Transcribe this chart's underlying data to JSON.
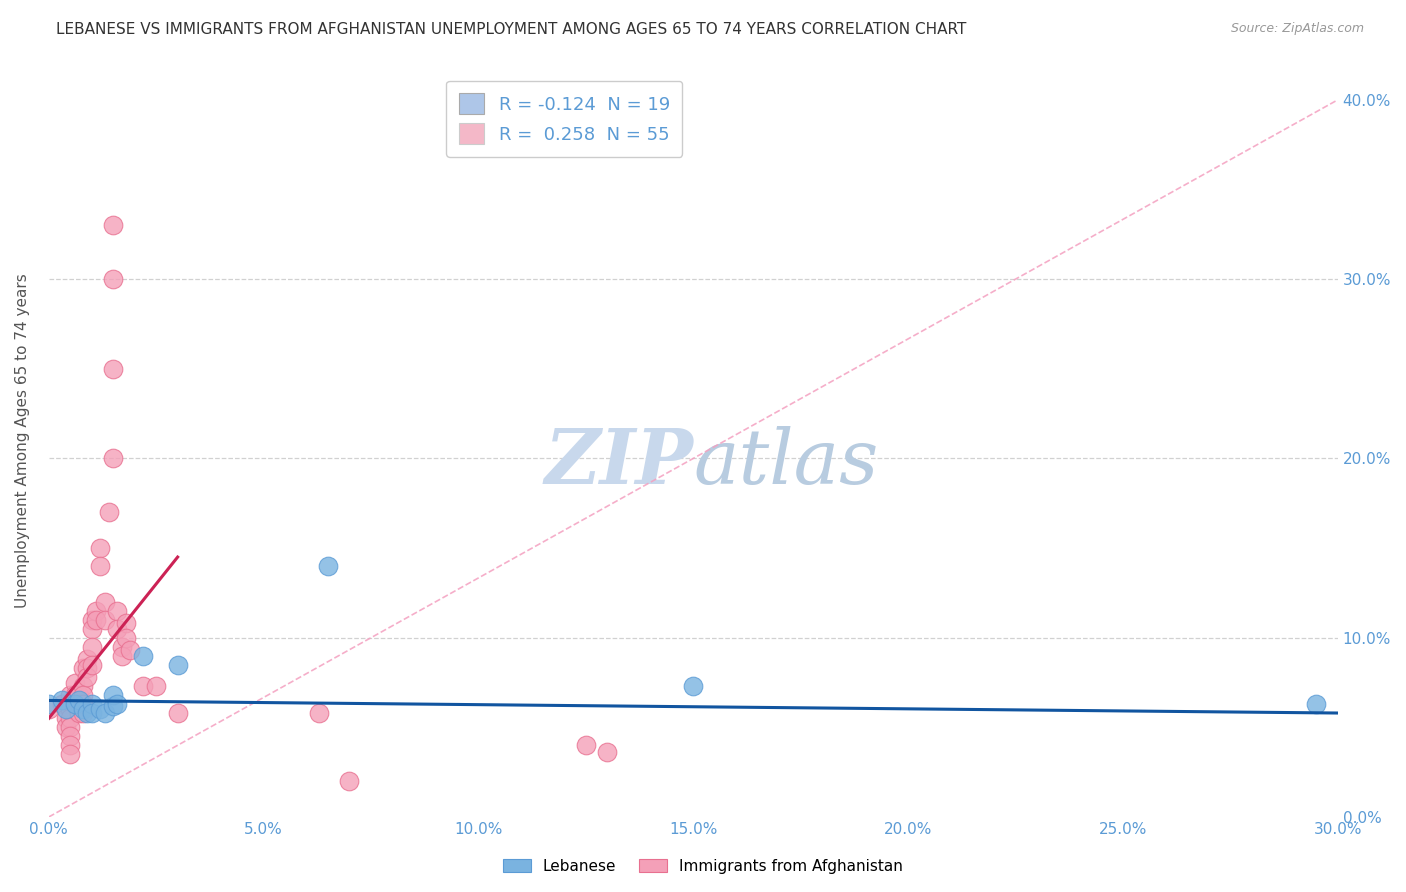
{
  "title": "LEBANESE VS IMMIGRANTS FROM AFGHANISTAN UNEMPLOYMENT AMONG AGES 65 TO 74 YEARS CORRELATION CHART",
  "source": "Source: ZipAtlas.com",
  "ylabel": "Unemployment Among Ages 65 to 74 years",
  "xlim": [
    0.0,
    0.3
  ],
  "ylim": [
    0.0,
    0.42
  ],
  "watermark": "ZIPatlas",
  "legend_label_1": "R = -0.124  N = 19",
  "legend_label_2": "R =  0.258  N = 55",
  "lebanese_scatter": [
    [
      0.0,
      0.063
    ],
    [
      0.003,
      0.065
    ],
    [
      0.004,
      0.06
    ],
    [
      0.006,
      0.063
    ],
    [
      0.007,
      0.065
    ],
    [
      0.008,
      0.06
    ],
    [
      0.009,
      0.058
    ],
    [
      0.01,
      0.063
    ],
    [
      0.01,
      0.058
    ],
    [
      0.012,
      0.06
    ],
    [
      0.013,
      0.058
    ],
    [
      0.015,
      0.062
    ],
    [
      0.015,
      0.068
    ],
    [
      0.016,
      0.063
    ],
    [
      0.022,
      0.09
    ],
    [
      0.03,
      0.085
    ],
    [
      0.065,
      0.14
    ],
    [
      0.15,
      0.073
    ],
    [
      0.295,
      0.063
    ]
  ],
  "afghan_scatter": [
    [
      0.0,
      0.06
    ],
    [
      0.003,
      0.063
    ],
    [
      0.004,
      0.055
    ],
    [
      0.004,
      0.05
    ],
    [
      0.005,
      0.068
    ],
    [
      0.005,
      0.063
    ],
    [
      0.005,
      0.06
    ],
    [
      0.005,
      0.055
    ],
    [
      0.005,
      0.05
    ],
    [
      0.005,
      0.045
    ],
    [
      0.005,
      0.04
    ],
    [
      0.005,
      0.035
    ],
    [
      0.006,
      0.075
    ],
    [
      0.006,
      0.068
    ],
    [
      0.006,
      0.063
    ],
    [
      0.007,
      0.068
    ],
    [
      0.007,
      0.063
    ],
    [
      0.007,
      0.058
    ],
    [
      0.008,
      0.083
    ],
    [
      0.008,
      0.073
    ],
    [
      0.008,
      0.068
    ],
    [
      0.008,
      0.063
    ],
    [
      0.008,
      0.058
    ],
    [
      0.009,
      0.088
    ],
    [
      0.009,
      0.083
    ],
    [
      0.009,
      0.078
    ],
    [
      0.01,
      0.11
    ],
    [
      0.01,
      0.105
    ],
    [
      0.01,
      0.095
    ],
    [
      0.01,
      0.085
    ],
    [
      0.011,
      0.115
    ],
    [
      0.011,
      0.11
    ],
    [
      0.012,
      0.15
    ],
    [
      0.012,
      0.14
    ],
    [
      0.013,
      0.12
    ],
    [
      0.013,
      0.11
    ],
    [
      0.014,
      0.17
    ],
    [
      0.015,
      0.2
    ],
    [
      0.015,
      0.25
    ],
    [
      0.015,
      0.3
    ],
    [
      0.015,
      0.33
    ],
    [
      0.016,
      0.115
    ],
    [
      0.016,
      0.105
    ],
    [
      0.017,
      0.095
    ],
    [
      0.017,
      0.09
    ],
    [
      0.018,
      0.108
    ],
    [
      0.018,
      0.1
    ],
    [
      0.019,
      0.093
    ],
    [
      0.022,
      0.073
    ],
    [
      0.025,
      0.073
    ],
    [
      0.03,
      0.058
    ],
    [
      0.063,
      0.058
    ],
    [
      0.07,
      0.02
    ],
    [
      0.125,
      0.04
    ],
    [
      0.13,
      0.036
    ]
  ],
  "lebanese_color": "#7ab3e0",
  "lebanese_edge": "#5b9bd5",
  "afghan_color": "#f4a0b8",
  "afghan_edge": "#e87090",
  "trend_lebanese_color": "#1155a0",
  "trend_afghan_color": "#cc2255",
  "diagonal_color": "#f4a0c0",
  "legend_box_color_1": "#aec6e8",
  "legend_box_color_2": "#f4b8c8",
  "grid_color": "#cccccc",
  "background_color": "#ffffff",
  "title_fontsize": 11,
  "axis_label_fontsize": 11,
  "tick_fontsize": 11,
  "legend_fontsize": 13,
  "watermark_color": "#ccd8e8",
  "watermark_fontsize": 55,
  "trend_leb_x0": 0.0,
  "trend_leb_y0": 0.065,
  "trend_leb_x1": 0.3,
  "trend_leb_y1": 0.058,
  "trend_afg_x0": 0.0,
  "trend_afg_y0": 0.055,
  "trend_afg_x1": 0.03,
  "trend_afg_y1": 0.145
}
